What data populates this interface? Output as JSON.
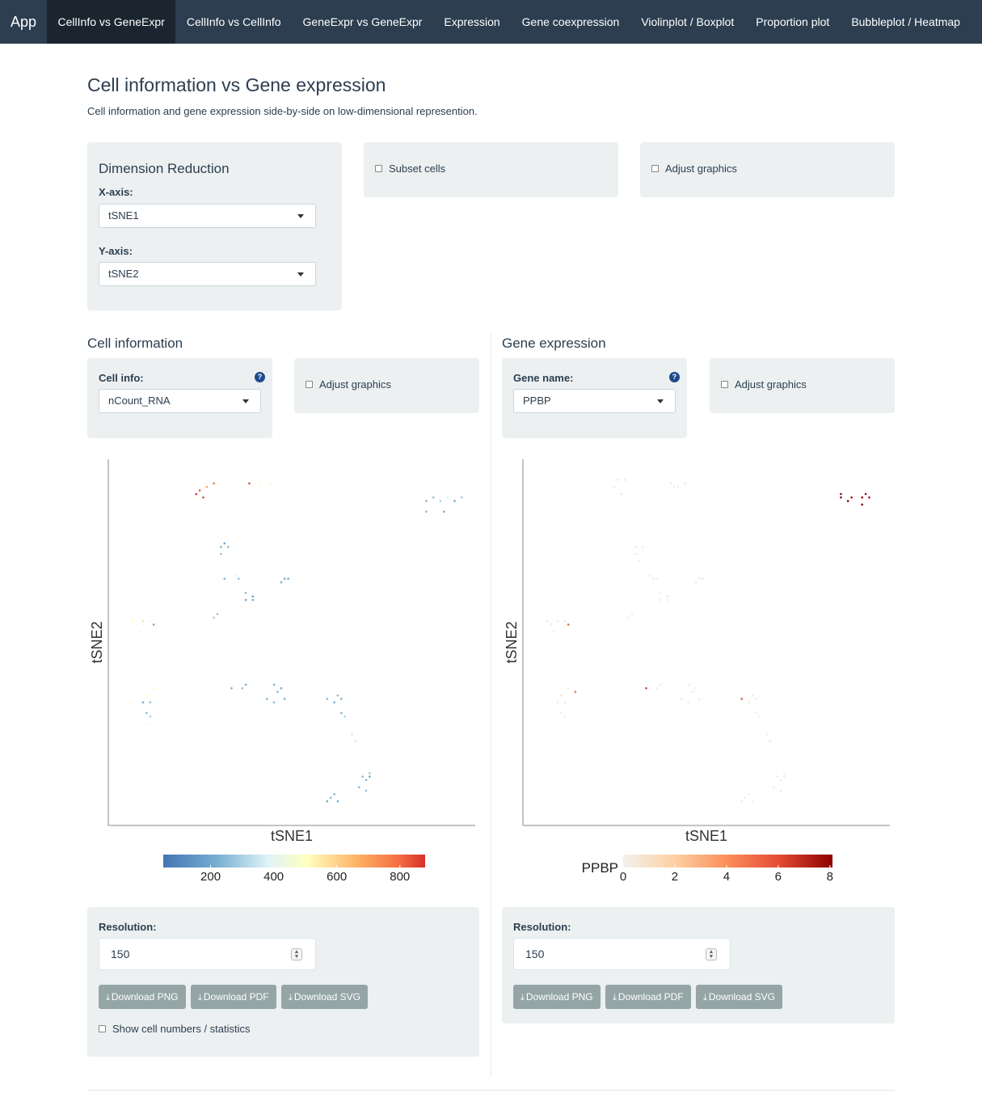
{
  "nav": {
    "brand": "App",
    "tabs": [
      {
        "label": "CellInfo vs GeneExpr",
        "active": true
      },
      {
        "label": "CellInfo vs CellInfo"
      },
      {
        "label": "GeneExpr vs GeneExpr"
      },
      {
        "label": "Expression"
      },
      {
        "label": "Gene coexpression"
      },
      {
        "label": "Violinplot / Boxplot"
      },
      {
        "label": "Proportion plot"
      },
      {
        "label": "Bubbleplot / Heatmap"
      }
    ]
  },
  "page": {
    "title": "Cell information vs Gene expression",
    "subtitle": "Cell information and gene expression side-by-side on low-dimensional represention."
  },
  "dimred": {
    "title": "Dimension Reduction",
    "x_label": "X-axis:",
    "x_value": "tSNE1",
    "y_label": "Y-axis:",
    "y_value": "tSNE2"
  },
  "subset": {
    "label": "Subset cells"
  },
  "adjust_top": {
    "label": "Adjust graphics"
  },
  "cellinfo": {
    "section_title": "Cell information",
    "field_label": "Cell info:",
    "field_value": "nCount_RNA",
    "adjust_label": "Adjust graphics",
    "help": "?"
  },
  "geneexpr": {
    "section_title": "Gene expression",
    "field_label": "Gene name:",
    "field_value": "PPBP",
    "adjust_label": "Adjust graphics",
    "help": "?"
  },
  "left_panel": {
    "res_label": "Resolution:",
    "res_value": "150",
    "btn_png": "Download PNG",
    "btn_pdf": "Download PDF",
    "btn_svg": "Download SVG",
    "stats_label": "Show cell numbers / statistics"
  },
  "right_panel": {
    "res_label": "Resolution:",
    "res_value": "150",
    "btn_png": "Download PNG",
    "btn_pdf": "Download PDF",
    "btn_svg": "Download SVG"
  },
  "colors": {
    "navbar": "#2c3e50",
    "well": "#ecf0f1",
    "button": "#95a5a6",
    "scale_low": "#4575b4",
    "scale_high": "#d73027",
    "expr_high": "#8b0000"
  },
  "icons": {
    "download": "download-icon",
    "help": "question-circle-icon",
    "caret": "caret-down-icon"
  },
  "chart_data": [
    {
      "type": "scatter",
      "xlabel": "tSNE1",
      "ylabel": "tSNE2",
      "xlim": [
        0,
        100
      ],
      "ylim": [
        0,
        100
      ],
      "legend_ticks": [
        200,
        400,
        600,
        800
      ],
      "color_range": [
        50,
        880
      ],
      "legend_title": "",
      "points": [
        [
          24,
          93,
          820
        ],
        [
          26,
          94,
          700
        ],
        [
          23,
          92,
          880
        ],
        [
          25,
          91,
          860
        ],
        [
          28,
          95,
          800
        ],
        [
          38,
          95,
          840
        ],
        [
          41,
          95,
          500
        ],
        [
          44,
          95,
          420
        ],
        [
          90,
          91,
          260
        ],
        [
          92,
          90,
          300
        ],
        [
          88,
          90,
          240
        ],
        [
          94,
          91,
          420
        ],
        [
          96,
          90,
          200
        ],
        [
          93,
          87,
          210
        ],
        [
          88,
          87,
          240
        ],
        [
          98,
          91,
          270
        ],
        [
          30,
          77,
          220
        ],
        [
          32,
          77,
          240
        ],
        [
          30,
          75,
          260
        ],
        [
          31,
          78,
          200
        ],
        [
          31,
          68,
          230
        ],
        [
          34,
          69,
          400
        ],
        [
          35,
          68,
          260
        ],
        [
          47,
          67,
          220
        ],
        [
          48,
          68,
          200
        ],
        [
          49,
          68,
          210
        ],
        [
          37,
          64,
          240
        ],
        [
          39,
          63,
          180
        ],
        [
          37,
          62,
          200
        ],
        [
          39,
          62,
          220
        ],
        [
          29,
          58,
          260
        ],
        [
          28,
          57,
          300
        ],
        [
          5,
          56,
          520
        ],
        [
          6,
          55,
          480
        ],
        [
          8,
          56,
          560
        ],
        [
          10,
          56,
          420
        ],
        [
          11,
          55,
          210
        ],
        [
          7,
          53,
          380
        ],
        [
          11,
          37,
          520
        ],
        [
          9,
          35,
          480
        ],
        [
          8,
          33,
          200
        ],
        [
          10,
          33,
          260
        ],
        [
          9,
          30,
          240
        ],
        [
          10,
          29,
          300
        ],
        [
          9,
          27,
          440
        ],
        [
          33,
          37,
          230
        ],
        [
          36,
          37,
          260
        ],
        [
          37,
          38,
          210
        ],
        [
          45,
          38,
          230
        ],
        [
          47,
          37,
          200
        ],
        [
          46,
          36,
          240
        ],
        [
          43,
          34,
          230
        ],
        [
          45,
          33,
          250
        ],
        [
          48,
          34,
          210
        ],
        [
          60,
          34,
          240
        ],
        [
          63,
          35,
          260
        ],
        [
          64,
          34,
          220
        ],
        [
          62,
          33,
          210
        ],
        [
          64,
          30,
          240
        ],
        [
          65,
          29,
          300
        ],
        [
          67,
          24,
          350
        ],
        [
          68,
          22,
          360
        ],
        [
          61,
          6,
          240
        ],
        [
          62,
          7,
          220
        ],
        [
          60,
          5,
          200
        ],
        [
          63,
          5,
          220
        ],
        [
          69,
          9,
          240
        ],
        [
          71,
          8,
          260
        ],
        [
          71,
          11,
          230
        ],
        [
          72,
          12,
          200
        ],
        [
          70,
          12,
          250
        ],
        [
          72,
          13,
          280
        ]
      ]
    },
    {
      "type": "scatter",
      "xlabel": "tSNE1",
      "ylabel": "tSNE2",
      "xlim": [
        0,
        100
      ],
      "ylim": [
        0,
        100
      ],
      "legend_title": "PPBP",
      "legend_ticks": [
        0,
        2,
        4,
        6,
        8
      ],
      "color_range": [
        0,
        8.1
      ],
      "points": [
        [
          25,
          96,
          0.6
        ],
        [
          27,
          96,
          0.4
        ],
        [
          24,
          94,
          0.5
        ],
        [
          26,
          92,
          0.4
        ],
        [
          40,
          95,
          0.5
        ],
        [
          42,
          94,
          0.6
        ],
        [
          44,
          95,
          0.4
        ],
        [
          41,
          94,
          0.5
        ],
        [
          88,
          92,
          8
        ],
        [
          90,
          90,
          8
        ],
        [
          91,
          91,
          7.8
        ],
        [
          94,
          91,
          8
        ],
        [
          94,
          89,
          8
        ],
        [
          95,
          92,
          7.9
        ],
        [
          88,
          91,
          7.9
        ],
        [
          96,
          91,
          7.8
        ],
        [
          30,
          77,
          0.5
        ],
        [
          32,
          77,
          0.4
        ],
        [
          30,
          75,
          0.5
        ],
        [
          31,
          73,
          0.3
        ],
        [
          34,
          69,
          0.4
        ],
        [
          35,
          68,
          0.5
        ],
        [
          36,
          68,
          0.3
        ],
        [
          47,
          67,
          0.4
        ],
        [
          48,
          68,
          0.5
        ],
        [
          49,
          68,
          0.4
        ],
        [
          37,
          64,
          0.4
        ],
        [
          39,
          63,
          0.5
        ],
        [
          37,
          62,
          0.4
        ],
        [
          39,
          62,
          0.3
        ],
        [
          29,
          58,
          0.4
        ],
        [
          28,
          57,
          0.5
        ],
        [
          5,
          56,
          0.4
        ],
        [
          6,
          55,
          0.5
        ],
        [
          8,
          56,
          0.4
        ],
        [
          10,
          56,
          0.5
        ],
        [
          11,
          55,
          5.2
        ],
        [
          7,
          53,
          0.5
        ],
        [
          11,
          37,
          0.6
        ],
        [
          9,
          35,
          0.4
        ],
        [
          8,
          33,
          0.5
        ],
        [
          10,
          33,
          0.4
        ],
        [
          9,
          30,
          0.4
        ],
        [
          10,
          29,
          0.5
        ],
        [
          13,
          36,
          4.8
        ],
        [
          33,
          37,
          6.3
        ],
        [
          36,
          37,
          0.5
        ],
        [
          37,
          38,
          0.4
        ],
        [
          45,
          38,
          0.4
        ],
        [
          47,
          37,
          0.5
        ],
        [
          46,
          36,
          0.4
        ],
        [
          43,
          34,
          0.5
        ],
        [
          45,
          33,
          0.4
        ],
        [
          48,
          34,
          0.3
        ],
        [
          60,
          34,
          5.8
        ],
        [
          63,
          35,
          0.5
        ],
        [
          64,
          34,
          0.4
        ],
        [
          62,
          33,
          0.5
        ],
        [
          64,
          30,
          0.4
        ],
        [
          65,
          29,
          0.3
        ],
        [
          67,
          24,
          0.4
        ],
        [
          68,
          22,
          0.5
        ],
        [
          61,
          6,
          0.4
        ],
        [
          62,
          7,
          0.5
        ],
        [
          60,
          5,
          0.4
        ],
        [
          63,
          5,
          0.3
        ],
        [
          69,
          9,
          0.4
        ],
        [
          71,
          8,
          0.5
        ],
        [
          71,
          11,
          0.3
        ],
        [
          72,
          12,
          0.4
        ],
        [
          70,
          12,
          0.5
        ],
        [
          72,
          13,
          0.3
        ]
      ]
    }
  ]
}
